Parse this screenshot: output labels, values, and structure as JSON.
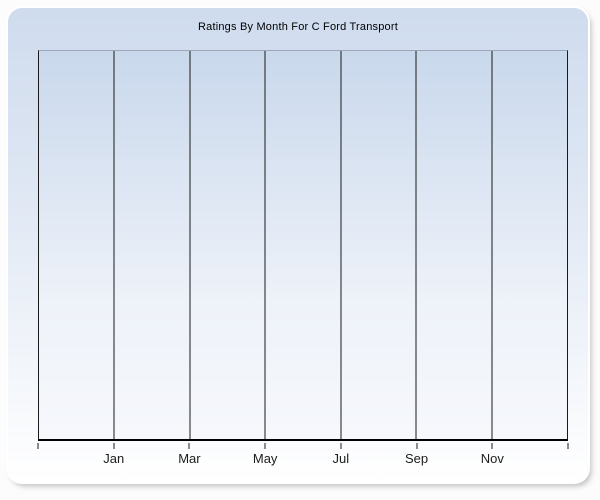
{
  "panel": {
    "title": "Ratings By Month For C Ford Transport"
  },
  "chart_data": {
    "type": "line",
    "title": "Ratings By Month For C Ford Transport",
    "xlabel": "",
    "ylabel": "",
    "x_tick_labels": [
      "Jan",
      "Mar",
      "May",
      "Jul",
      "Sep",
      "Nov"
    ],
    "x_columns": 7,
    "series": [],
    "plot_empty": true,
    "grid": "vertical-only",
    "legend": "none",
    "y_tick_labels": []
  },
  "colors": {
    "page_bg": "#fcfcfc",
    "panel_gradient_top": "#cfdcee",
    "panel_gradient_bottom": "#ffffff",
    "plot_gradient_top": "#c9d8ec",
    "plot_gradient_bottom": "#f6f8fc",
    "gridline": "#1a1a1a",
    "axis_line": "#000000",
    "plot_top_border": "#9ba7b7",
    "title_text": "#000000",
    "tick_label_text": "#1c1c1c"
  }
}
